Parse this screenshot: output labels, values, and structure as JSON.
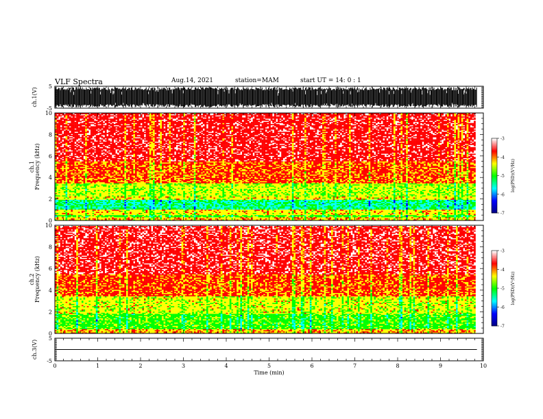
{
  "header": {
    "title": "VLF Spectra",
    "date": "Aug.14, 2021",
    "station": "station=MAM",
    "start_ut": "start  UT =   14: 0  : 1"
  },
  "chart_data": [
    {
      "type": "line",
      "panel": "ch1-waveform",
      "ylabel": "ch.1(V)",
      "ylim": [
        -5,
        5
      ],
      "yticks": [
        "5",
        "-5"
      ],
      "xlim": [
        0,
        10
      ],
      "style": "dense black waveform filling the range between about -4.5 and +4.5, ending near 9.85 min"
    },
    {
      "type": "heatmap",
      "panel": "ch1-spectrogram",
      "ylabel": "ch.1\nFrequency (kHz)",
      "ylim": [
        0,
        10
      ],
      "yticks": [
        "0",
        "2",
        "4",
        "6",
        "8",
        "10"
      ],
      "xlim": [
        0,
        10
      ],
      "data_end_min": 9.85,
      "colorbar": {
        "label": "log(PSD)(V²/Hz)",
        "range": [
          -7,
          -3
        ],
        "ticks": [
          "-3",
          "-4",
          "-5",
          "-6",
          "-7"
        ]
      },
      "bands": [
        {
          "freq_khz": [
            0.0,
            0.3
          ],
          "level": -4.2
        },
        {
          "freq_khz": [
            0.3,
            0.55
          ],
          "level": -4.9
        },
        {
          "freq_khz": [
            0.55,
            1.0
          ],
          "level": -4.3
        },
        {
          "freq_khz": [
            1.0,
            1.9
          ],
          "level": -5.3
        },
        {
          "freq_khz": [
            1.9,
            2.2
          ],
          "level": -4.3
        },
        {
          "freq_khz": [
            2.2,
            3.5
          ],
          "level": -4.5
        },
        {
          "freq_khz": [
            3.5,
            5.5
          ],
          "level": -3.85
        },
        {
          "freq_khz": [
            5.5,
            10.0
          ],
          "level": -3.55
        }
      ]
    },
    {
      "type": "heatmap",
      "panel": "ch2-spectrogram",
      "ylabel": "ch.2\nFrequency (kHz)",
      "ylim": [
        0,
        10
      ],
      "yticks": [
        "0",
        "2",
        "4",
        "6",
        "8",
        "10"
      ],
      "xlim": [
        0,
        10
      ],
      "data_end_min": 9.85,
      "colorbar": {
        "label": "log(PSD)(V²/Hz)",
        "range": [
          -7,
          -3
        ],
        "ticks": [
          "-3",
          "-4",
          "-5",
          "-6",
          "-7"
        ]
      },
      "bands": [
        {
          "freq_khz": [
            0.0,
            0.4
          ],
          "level": -4.1
        },
        {
          "freq_khz": [
            0.4,
            1.8
          ],
          "level": -4.9
        },
        {
          "freq_khz": [
            1.8,
            3.4
          ],
          "level": -4.4
        },
        {
          "freq_khz": [
            3.4,
            5.5
          ],
          "level": -3.8
        },
        {
          "freq_khz": [
            5.5,
            10.0
          ],
          "level": -3.5
        }
      ]
    },
    {
      "type": "line",
      "panel": "ch3-waveform",
      "ylabel": "ch.3(V)",
      "ylim": [
        -5,
        5
      ],
      "yticks": [
        "5",
        "-5"
      ],
      "xlim": [
        0,
        10
      ],
      "xlabel": "Time  (min)",
      "xticks": [
        "0",
        "1",
        "2",
        "3",
        "4",
        "5",
        "6",
        "7",
        "8",
        "9",
        "10"
      ],
      "constant_value": 0
    }
  ],
  "colors": {
    "colormap": [
      "#000080",
      "#0000ff",
      "#00ffff",
      "#00ff00",
      "#ffff00",
      "#ff0000",
      "#ffffff"
    ],
    "axis": "#000000",
    "background": "#ffffff"
  }
}
